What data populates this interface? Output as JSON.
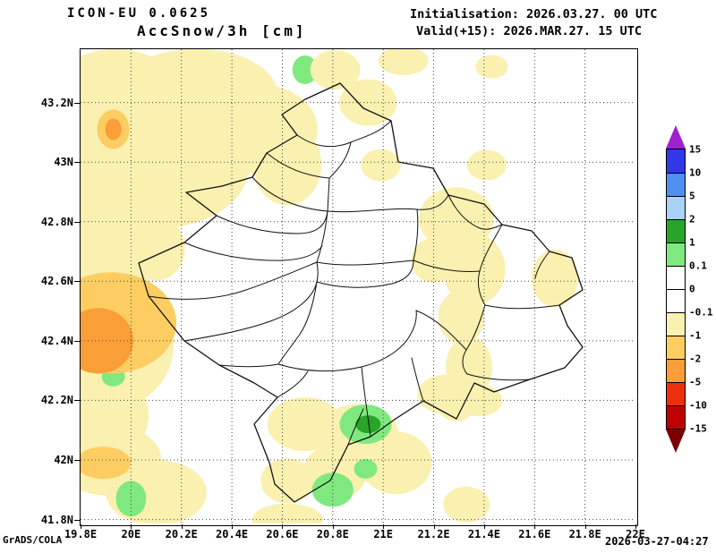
{
  "header": {
    "model": "ICON-EU 0.0625",
    "variable": "AccSnow/3h [cm]",
    "init": "Initialisation: 2026.03.27. 00 UTC",
    "valid": "Valid(+15): 2026.MAR.27. 15 UTC"
  },
  "footer": {
    "credit": "GrADS/COLA",
    "timestamp": "2026-03-27-04:27"
  },
  "chart_data": {
    "type": "heatmap",
    "title": "AccSnow/3h [cm]",
    "model": "ICON-EU 0.0625",
    "initialisation": "2026.03.27. 00 UTC",
    "valid_time": "2026.MAR.27. 15 UTC",
    "lead_hours": 15,
    "units": "cm",
    "region": "Kosovo",
    "grid": "dotted",
    "legend_position": "right-vertical",
    "lon_range": [
      19.8,
      22.0
    ],
    "lat_range": [
      41.79,
      43.38
    ],
    "x_ticks": [
      "19.8E",
      "20E",
      "20.2E",
      "20.4E",
      "20.6E",
      "20.8E",
      "21E",
      "21.2E",
      "21.4E",
      "21.6E",
      "21.8E",
      "22E"
    ],
    "y_ticks": [
      "43.2N",
      "43N",
      "42.8N",
      "42.6N",
      "42.4N",
      "42.2N",
      "42N",
      "41.8N"
    ],
    "colorbar": {
      "boundaries": [
        15,
        10,
        5,
        2,
        1,
        0.1,
        0,
        -0.1,
        -1,
        -2,
        -5,
        -10,
        -15
      ],
      "colors": [
        "#a020d0",
        "#3038e8",
        "#4f8ff0",
        "#a8d3f7",
        "#28a428",
        "#7fe97f",
        "#ffffff",
        "#ffffff",
        "#faf0b0",
        "#fdcd62",
        "#fa9e38",
        "#ee2f0e",
        "#c00000",
        "#7a0000"
      ]
    },
    "region_format": [
      "lon",
      "lat",
      "rlon_deg",
      "rlat_deg",
      "value_cm"
    ],
    "shaded_regions": [
      [
        19.94,
        43.2,
        0.27,
        0.18,
        -0.5
      ],
      [
        20.26,
        43.23,
        0.32,
        0.15,
        -0.5
      ],
      [
        20.12,
        42.99,
        0.35,
        0.21,
        -0.5
      ],
      [
        20.51,
        43.11,
        0.23,
        0.15,
        -0.5
      ],
      [
        19.91,
        42.78,
        0.21,
        0.18,
        -0.5
      ],
      [
        19.87,
        42.6,
        0.2,
        0.18,
        -0.5
      ],
      [
        19.94,
        42.39,
        0.23,
        0.21,
        -0.5
      ],
      [
        19.89,
        42.15,
        0.18,
        0.15,
        -0.5
      ],
      [
        20.1,
        42.71,
        0.114,
        0.108,
        -0.5
      ],
      [
        19.92,
        42.46,
        0.26,
        0.17,
        -1.5
      ],
      [
        19.87,
        42.4,
        0.14,
        0.11,
        -3
      ],
      [
        19.93,
        43.11,
        0.064,
        0.066,
        -1.5
      ],
      [
        19.93,
        43.11,
        0.032,
        0.036,
        -3
      ],
      [
        19.93,
        42.28,
        0.046,
        0.033,
        0.5
      ],
      [
        19.91,
        42.0,
        0.21,
        0.12,
        -0.5
      ],
      [
        20.1,
        41.89,
        0.2,
        0.11,
        -0.5
      ],
      [
        19.89,
        41.99,
        0.11,
        0.054,
        -1.5
      ],
      [
        20.0,
        41.87,
        0.06,
        0.06,
        0.5
      ],
      [
        20.69,
        43.31,
        0.05,
        0.048,
        0.5
      ],
      [
        20.81,
        43.31,
        0.099,
        0.066,
        -0.5
      ],
      [
        21.08,
        43.34,
        0.099,
        0.048,
        -0.5
      ],
      [
        21.43,
        43.32,
        0.064,
        0.039,
        -0.5
      ],
      [
        20.62,
        42.99,
        0.135,
        0.135,
        -0.5
      ],
      [
        20.94,
        43.2,
        0.114,
        0.078,
        -0.5
      ],
      [
        20.99,
        42.99,
        0.078,
        0.054,
        -0.5
      ],
      [
        21.41,
        42.99,
        0.078,
        0.051,
        -0.5
      ],
      [
        21.29,
        42.81,
        0.149,
        0.105,
        -0.5
      ],
      [
        21.36,
        42.64,
        0.124,
        0.12,
        -0.5
      ],
      [
        21.2,
        42.67,
        0.089,
        0.075,
        -0.5
      ],
      [
        21.68,
        42.61,
        0.092,
        0.096,
        -0.5
      ],
      [
        21.31,
        42.48,
        0.092,
        0.09,
        -0.5
      ],
      [
        21.34,
        42.31,
        0.092,
        0.105,
        -0.5
      ],
      [
        21.29,
        42.19,
        0.078,
        0.06,
        -0.5
      ],
      [
        21.25,
        42.22,
        0.114,
        0.066,
        -0.5
      ],
      [
        21.38,
        42.2,
        0.092,
        0.054,
        -0.5
      ],
      [
        20.69,
        42.12,
        0.149,
        0.09,
        -0.5
      ],
      [
        20.9,
        42.08,
        0.163,
        0.108,
        -0.5
      ],
      [
        21.05,
        41.99,
        0.142,
        0.105,
        -0.5
      ],
      [
        20.81,
        41.96,
        0.128,
        0.09,
        -0.5
      ],
      [
        20.62,
        41.93,
        0.106,
        0.075,
        -0.5
      ],
      [
        20.62,
        41.8,
        0.14,
        0.054,
        -0.5
      ],
      [
        21.33,
        41.85,
        0.092,
        0.06,
        -0.5
      ],
      [
        20.93,
        42.12,
        0.103,
        0.066,
        0.5
      ],
      [
        20.94,
        42.12,
        0.05,
        0.03,
        1.5
      ],
      [
        20.93,
        41.97,
        0.046,
        0.033,
        0.5
      ],
      [
        20.8,
        41.9,
        0.082,
        0.057,
        0.5
      ]
    ]
  }
}
